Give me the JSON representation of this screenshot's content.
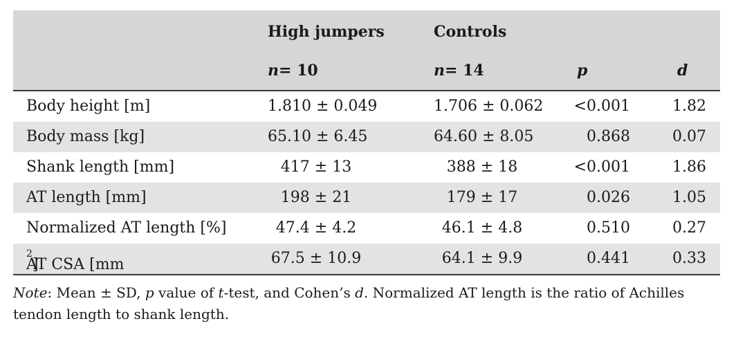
{
  "header": {
    "group1": "High jumpers",
    "group2": "Controls",
    "n1_label": "n",
    "n1_value": "= 10",
    "n2_label": "n",
    "n2_value": "= 14",
    "p_label": "p",
    "d_label": "d"
  },
  "rows": [
    {
      "label": "Body height [m]",
      "hj": "1.810 ± 0.049",
      "ct": "1.706 ± 0.062",
      "p": "<0.001",
      "d": "1.82"
    },
    {
      "label": "Body mass [kg]",
      "hj": "65.10 ± 6.45",
      "ct": "64.60 ± 8.05",
      "p": "0.868",
      "d": "0.07"
    },
    {
      "label": "Shank length [mm]",
      "hj": "417 ± 13",
      "ct": "388 ± 18",
      "p": "<0.001",
      "d": "1.86"
    },
    {
      "label": "AT length [mm]",
      "hj": "198 ± 21",
      "ct": "179 ± 17",
      "p": "0.026",
      "d": "1.05"
    },
    {
      "label": "Normalized AT length [%]",
      "hj": "47.4 ± 4.2",
      "ct": "46.1 ± 4.8",
      "p": "0.510",
      "d": "0.27"
    },
    {
      "label_main": "AT CSA [mm",
      "label_sup": "2",
      "label_end": "]",
      "hj": "67.5 ± 10.9",
      "ct": "64.1 ± 9.9",
      "p": "0.441",
      "d": "0.33"
    }
  ],
  "note": {
    "prefix": "Note",
    "part1": ": Mean ± SD, ",
    "p_italic": "p",
    "part2": " value of ",
    "t_italic": "t",
    "part3": "-test, and Cohen’s ",
    "d_italic": "d",
    "part4": ". Normalized AT length is the ratio of Achilles tendon length to shank length."
  }
}
